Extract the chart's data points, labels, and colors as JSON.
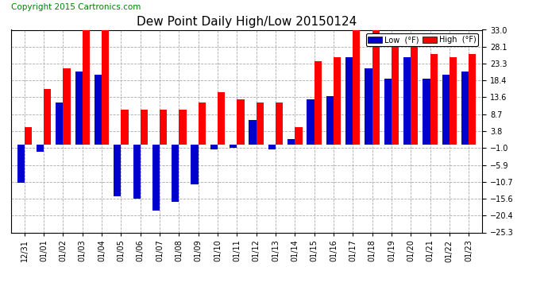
{
  "title": "Dew Point Daily High/Low 20150124",
  "copyright": "Copyright 2015 Cartronics.com",
  "legend_low": "Low  (°F)",
  "legend_high": "High  (°F)",
  "dates": [
    "12/31",
    "01/01",
    "01/02",
    "01/03",
    "01/04",
    "01/05",
    "01/06",
    "01/07",
    "01/08",
    "01/09",
    "01/10",
    "01/11",
    "01/12",
    "01/13",
    "01/14",
    "01/15",
    "01/16",
    "01/17",
    "01/18",
    "01/19",
    "01/20",
    "01/21",
    "01/22",
    "01/23"
  ],
  "high": [
    5.0,
    16.0,
    22.0,
    34.0,
    33.0,
    10.0,
    10.0,
    10.0,
    10.0,
    12.0,
    15.0,
    13.0,
    12.0,
    12.0,
    5.0,
    24.0,
    25.0,
    33.0,
    33.0,
    30.0,
    30.0,
    26.0,
    25.0,
    26.0
  ],
  "low": [
    -11.0,
    -2.0,
    12.0,
    21.0,
    20.0,
    -15.0,
    -15.5,
    -19.0,
    -16.5,
    -11.5,
    -1.5,
    -1.0,
    7.0,
    -1.5,
    1.5,
    13.0,
    14.0,
    25.0,
    22.0,
    19.0,
    25.0,
    19.0,
    20.0,
    21.0
  ],
  "ylim": [
    -25.3,
    33.0
  ],
  "yticks": [
    33.0,
    28.1,
    23.3,
    18.4,
    13.6,
    8.7,
    3.8,
    -1.0,
    -5.9,
    -10.7,
    -15.6,
    -20.4,
    -25.3
  ],
  "bar_width": 0.38,
  "high_color": "#ff0000",
  "low_color": "#0000cc",
  "bg_color": "#ffffff",
  "grid_color": "#aaaaaa",
  "title_fontsize": 11,
  "tick_fontsize": 7,
  "copyright_fontsize": 7.5
}
